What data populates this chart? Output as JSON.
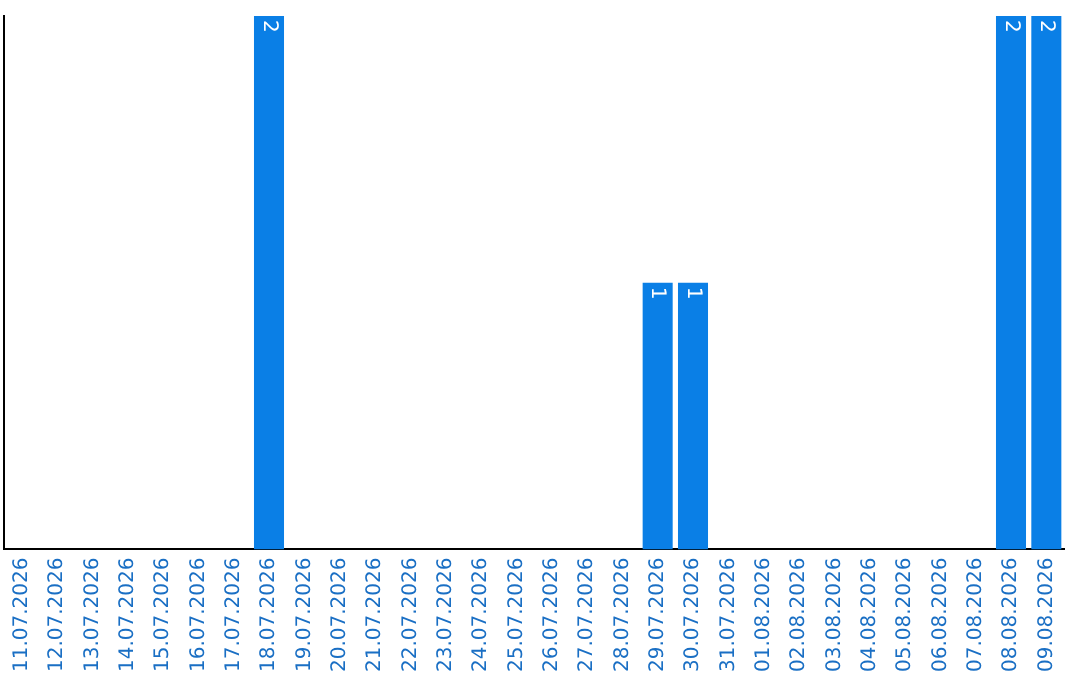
{
  "chart_data": {
    "type": "bar",
    "categories": [
      "11.07.2026",
      "12.07.2026",
      "13.07.2026",
      "14.07.2026",
      "15.07.2026",
      "16.07.2026",
      "17.07.2026",
      "18.07.2026",
      "19.07.2026",
      "20.07.2026",
      "21.07.2026",
      "22.07.2026",
      "23.07.2026",
      "24.07.2026",
      "25.07.2026",
      "26.07.2026",
      "27.07.2026",
      "28.07.2026",
      "29.07.2026",
      "30.07.2026",
      "31.07.2026",
      "01.08.2026",
      "02.08.2026",
      "03.08.2026",
      "04.08.2026",
      "05.08.2026",
      "06.08.2026",
      "07.08.2026",
      "08.08.2026",
      "09.08.2026"
    ],
    "values": [
      0,
      0,
      0,
      0,
      0,
      0,
      0,
      2,
      0,
      0,
      0,
      0,
      0,
      0,
      0,
      0,
      0,
      0,
      1,
      1,
      0,
      0,
      0,
      0,
      0,
      0,
      0,
      0,
      2,
      2
    ],
    "value_labels": [
      null,
      null,
      null,
      null,
      null,
      null,
      null,
      "2",
      null,
      null,
      null,
      null,
      null,
      null,
      null,
      null,
      null,
      null,
      "1",
      "1",
      null,
      null,
      null,
      null,
      null,
      null,
      null,
      null,
      "2",
      "2"
    ],
    "color": "#0a7fe6",
    "grid": false,
    "legend": false,
    "tick_labels": "x"
  }
}
